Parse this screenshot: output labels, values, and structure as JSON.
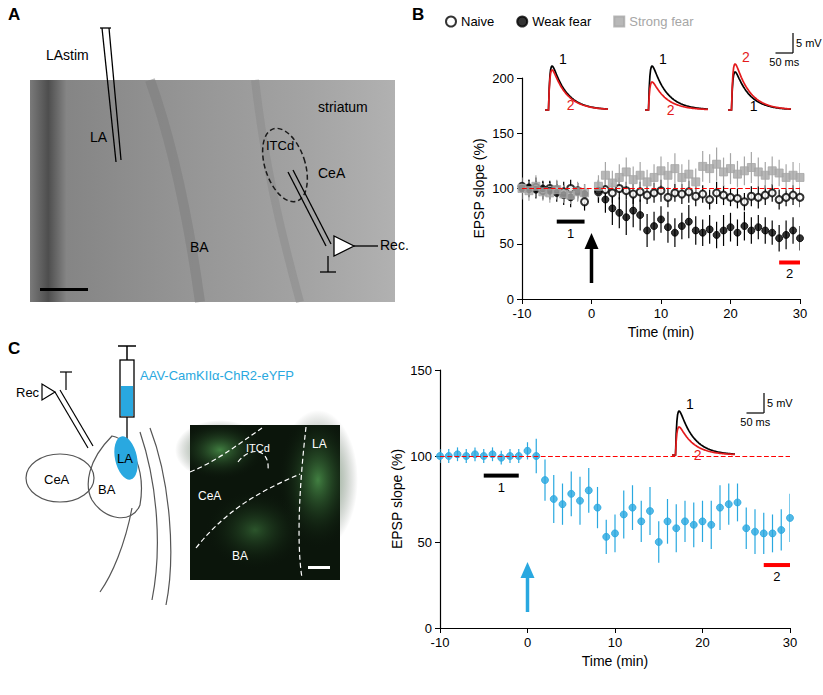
{
  "panel_labels": [
    "A",
    "B",
    "C"
  ],
  "panel_a": {
    "stimulation": "LAstim",
    "la": "LA",
    "itcd": "ITCd",
    "striatum": "striatum",
    "cea": "CeA",
    "ba": "BA",
    "recording": "Rec."
  },
  "panel_c_diagram": {
    "virus": "AAV-CamKIIα-ChR2-eYFP",
    "recording": "Rec",
    "cea": "CeA",
    "ba": "BA",
    "la": "LA",
    "image_labels": {
      "cea": "CeA",
      "itcd": "ITCd",
      "la": "LA",
      "ba": "BA"
    }
  },
  "chart_data": [
    {
      "type": "scatter",
      "x_label": "Time (min)",
      "y_label": "EPSP slope (%)",
      "x": [
        -10,
        -9,
        -8,
        -7,
        -6,
        -5,
        -4,
        -3,
        -2,
        -1,
        1,
        2,
        3,
        4,
        5,
        6,
        7,
        8,
        9,
        10,
        11,
        12,
        13,
        14,
        15,
        16,
        17,
        18,
        19,
        20,
        21,
        22,
        23,
        24,
        25,
        26,
        27,
        28,
        29,
        30
      ],
      "series": [
        {
          "name": "Naive",
          "color": "#000000",
          "marker": "open_circle",
          "values": [
            102,
            100,
            101,
            98,
            100,
            99,
            97,
            100,
            98,
            88,
            97,
            99,
            96,
            100,
            98,
            95,
            97,
            94,
            96,
            98,
            92,
            96,
            95,
            97,
            93,
            95,
            90,
            96,
            94,
            92,
            91,
            88,
            93,
            92,
            94,
            96,
            90,
            92,
            94,
            92
          ],
          "errors": [
            10,
            8,
            9,
            8,
            7,
            8,
            9,
            8,
            7,
            8,
            10,
            9,
            9,
            10,
            8,
            9,
            9,
            8,
            9,
            10,
            9,
            8,
            9,
            10,
            9,
            8,
            9,
            10,
            9,
            8,
            9,
            8,
            9,
            10,
            9,
            8,
            9,
            8,
            9,
            9
          ]
        },
        {
          "name": "Weak fear",
          "color": "#000000",
          "marker": "circle",
          "values": [
            100,
            101,
            99,
            100,
            98,
            96,
            94,
            92,
            97,
            95,
            98,
            90,
            82,
            78,
            74,
            80,
            76,
            62,
            66,
            72,
            65,
            60,
            66,
            70,
            62,
            60,
            63,
            58,
            62,
            65,
            60,
            66,
            62,
            65,
            62,
            60,
            55,
            58,
            62,
            55
          ],
          "errors": [
            8,
            7,
            8,
            7,
            8,
            8,
            9,
            9,
            8,
            9,
            10,
            12,
            15,
            14,
            16,
            15,
            14,
            15,
            13,
            12,
            14,
            13,
            12,
            15,
            13,
            12,
            13,
            12,
            14,
            13,
            12,
            13,
            12,
            11,
            12,
            11,
            12,
            13,
            12,
            11
          ]
        },
        {
          "name": "Strong fear",
          "color": "#a6a6a6",
          "marker": "square",
          "values": [
            100,
            98,
            102,
            97,
            96,
            99,
            95,
            94,
            97,
            96,
            102,
            112,
            105,
            110,
            115,
            108,
            112,
            106,
            110,
            116,
            112,
            118,
            110,
            113,
            106,
            120,
            118,
            122,
            115,
            118,
            113,
            116,
            119,
            115,
            112,
            116,
            114,
            110,
            112,
            110
          ],
          "errors": [
            10,
            9,
            10,
            8,
            9,
            9,
            8,
            8,
            9,
            8,
            10,
            12,
            11,
            12,
            13,
            12,
            12,
            11,
            12,
            13,
            12,
            14,
            12,
            13,
            12,
            14,
            13,
            15,
            13,
            14,
            12,
            13,
            14,
            13,
            12,
            13,
            12,
            12,
            12,
            13
          ]
        }
      ],
      "xlim": [
        -10,
        30
      ],
      "xticks": [
        -10,
        0,
        10,
        20,
        30
      ],
      "ylim": [
        0,
        200
      ],
      "yticks": [
        0,
        50,
        100,
        150,
        200
      ],
      "grid": false,
      "legend": "top",
      "reference_line": {
        "value": 100,
        "color": "#ff0000",
        "line_style": "dashed"
      },
      "stimulus": {
        "time": 0,
        "color": "#000000"
      },
      "periods": [
        {
          "label": "1",
          "start": -5,
          "end": -1,
          "color": "#000000"
        },
        {
          "label": "2",
          "start": 27,
          "end": 30,
          "color": "#ff0000"
        }
      ],
      "insets": [
        {
          "traces": [
            {
              "label": "1",
              "color": "#000000",
              "peak": 11
            },
            {
              "label": "2",
              "color": "#e41a1c",
              "peak": 10
            }
          ]
        },
        {
          "traces": [
            {
              "label": "1",
              "color": "#000000",
              "peak": 11
            },
            {
              "label": "2",
              "color": "#e41a1c",
              "peak": 7
            }
          ]
        },
        {
          "traces": [
            {
              "label": "1",
              "color": "#000000",
              "peak": 9.5
            },
            {
              "label": "2",
              "color": "#e41a1c",
              "peak": 11.5
            }
          ]
        }
      ],
      "scale_bar": {
        "y": {
          "value": 5,
          "label": "5 mV"
        },
        "x": {
          "value": 50,
          "label": "50 ms"
        }
      }
    },
    {
      "type": "scatter",
      "x_label": "Time (min)",
      "y_label": "EPSP slope (%)",
      "x": [
        -10,
        -9,
        -8,
        -7,
        -6,
        -5,
        -4,
        -3,
        -2,
        -1,
        0,
        1,
        2,
        3,
        4,
        5,
        6,
        7,
        8,
        9,
        10,
        11,
        12,
        13,
        14,
        15,
        16,
        17,
        18,
        19,
        20,
        21,
        22,
        23,
        24,
        25,
        26,
        27,
        28,
        29,
        30
      ],
      "series": [
        {
          "color": "#29a8e0",
          "marker": "circle",
          "values": [
            100,
            100,
            101,
            100,
            101,
            100,
            101,
            99,
            100,
            100,
            103,
            100,
            86,
            75,
            72,
            78,
            74,
            80,
            70,
            53,
            55,
            66,
            70,
            62,
            68,
            50,
            62,
            58,
            62,
            60,
            62,
            60,
            70,
            72,
            73,
            58,
            56,
            55,
            55,
            57,
            64
          ],
          "errors": [
            4,
            4,
            4,
            4,
            4,
            4,
            4,
            4,
            4,
            4,
            5,
            10,
            12,
            14,
            12,
            13,
            14,
            13,
            12,
            10,
            11,
            14,
            13,
            12,
            14,
            12,
            13,
            14,
            12,
            13,
            12,
            14,
            13,
            12,
            11,
            12,
            13,
            12,
            11,
            12,
            14
          ]
        }
      ],
      "xlim": [
        -10,
        30
      ],
      "xticks": [
        -10,
        0,
        10,
        20,
        30
      ],
      "ylim": [
        0,
        150
      ],
      "yticks": [
        0,
        50,
        100,
        150
      ],
      "grid": false,
      "reference_line": {
        "value": 100,
        "color": "#ff0000",
        "line_style": "dashed"
      },
      "stimulus": {
        "time": 0,
        "color": "#29a8e0"
      },
      "periods": [
        {
          "label": "1",
          "start": -5,
          "end": -1,
          "color": "#000000"
        },
        {
          "label": "2",
          "start": 27,
          "end": 30,
          "color": "#ff0000"
        }
      ],
      "insets": [
        {
          "traces": [
            {
              "label": "1",
              "color": "#000000",
              "peak": 11
            },
            {
              "label": "2",
              "color": "#e41a1c",
              "peak": 7
            }
          ]
        }
      ],
      "scale_bar": {
        "y": {
          "value": 5,
          "label": "5 mV"
        },
        "x": {
          "value": 50,
          "label": "50 ms"
        }
      }
    }
  ]
}
